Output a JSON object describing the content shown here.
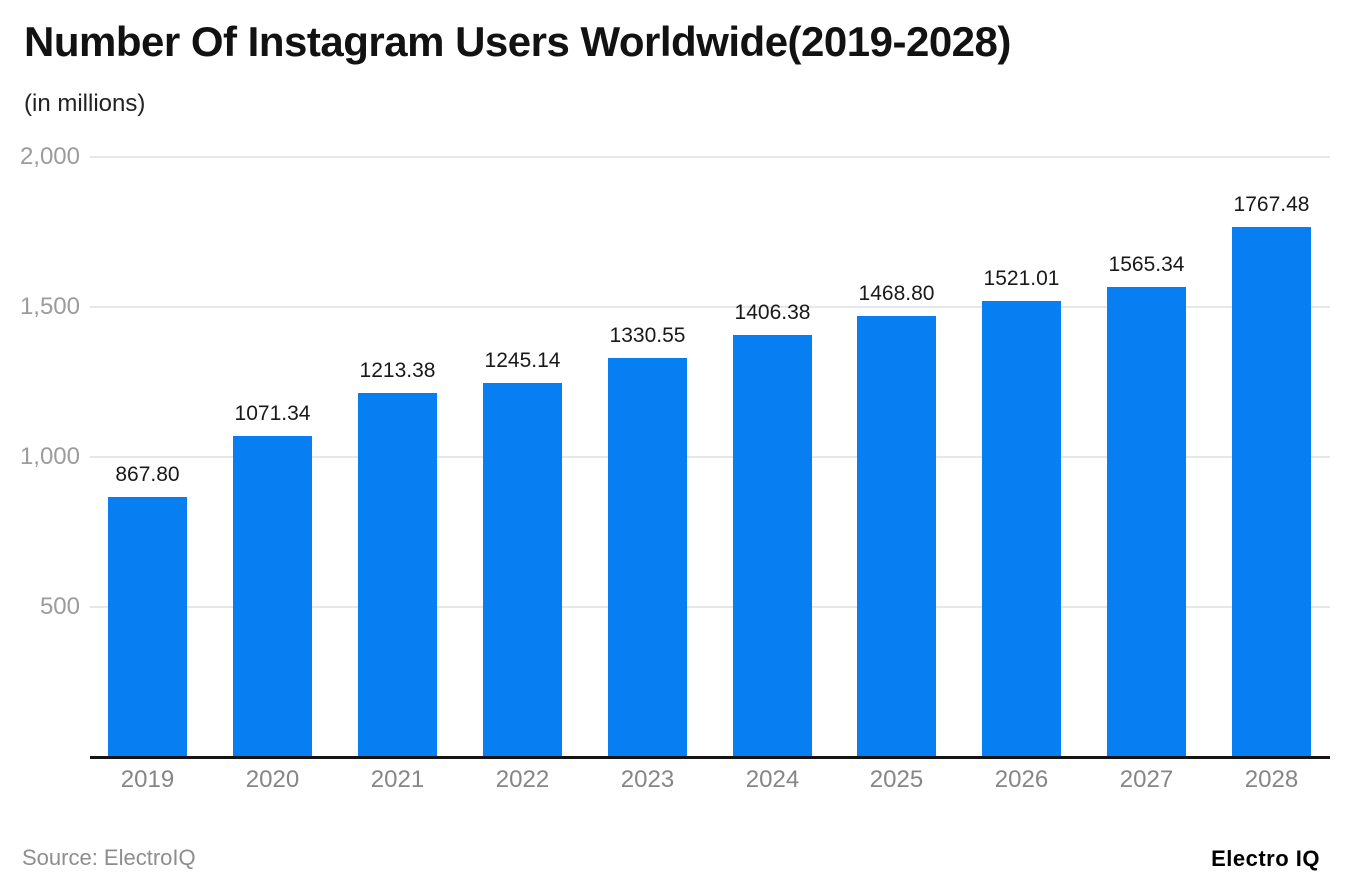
{
  "header": {
    "title": "Number Of Instagram Users Worldwide(2019-2028)",
    "subtitle": "(in millions)"
  },
  "chart_data": {
    "type": "bar",
    "title": "Number Of Instagram Users Worldwide(2019-2028)",
    "subtitle": "(in millions)",
    "categories": [
      "2019",
      "2020",
      "2021",
      "2022",
      "2023",
      "2024",
      "2025",
      "2026",
      "2027",
      "2028"
    ],
    "values": [
      867.8,
      1071.34,
      1213.38,
      1245.14,
      1330.55,
      1406.38,
      1468.8,
      1521.01,
      1565.34,
      1767.48
    ],
    "value_labels": [
      "867.80",
      "1071.34",
      "1213.38",
      "1245.14",
      "1330.55",
      "1406.38",
      "1468.80",
      "1521.01",
      "1565.34",
      "1767.48"
    ],
    "xlabel": "",
    "ylabel": "",
    "ylim": [
      0,
      2000
    ],
    "yticks": [
      500,
      1000,
      1500,
      2000
    ],
    "ytick_labels": [
      "500",
      "1,000",
      "1,500",
      "2,000"
    ],
    "grid": true,
    "legend": false
  },
  "footer": {
    "source": "Source: ElectroIQ",
    "brand": "Electro IQ"
  },
  "colors": {
    "bar": "#077ef2",
    "gridline": "#e7e7e7",
    "axis_line": "#141414",
    "ytick_text": "#9c9c9c",
    "xtick_text": "#868686",
    "value_text": "#191919"
  }
}
